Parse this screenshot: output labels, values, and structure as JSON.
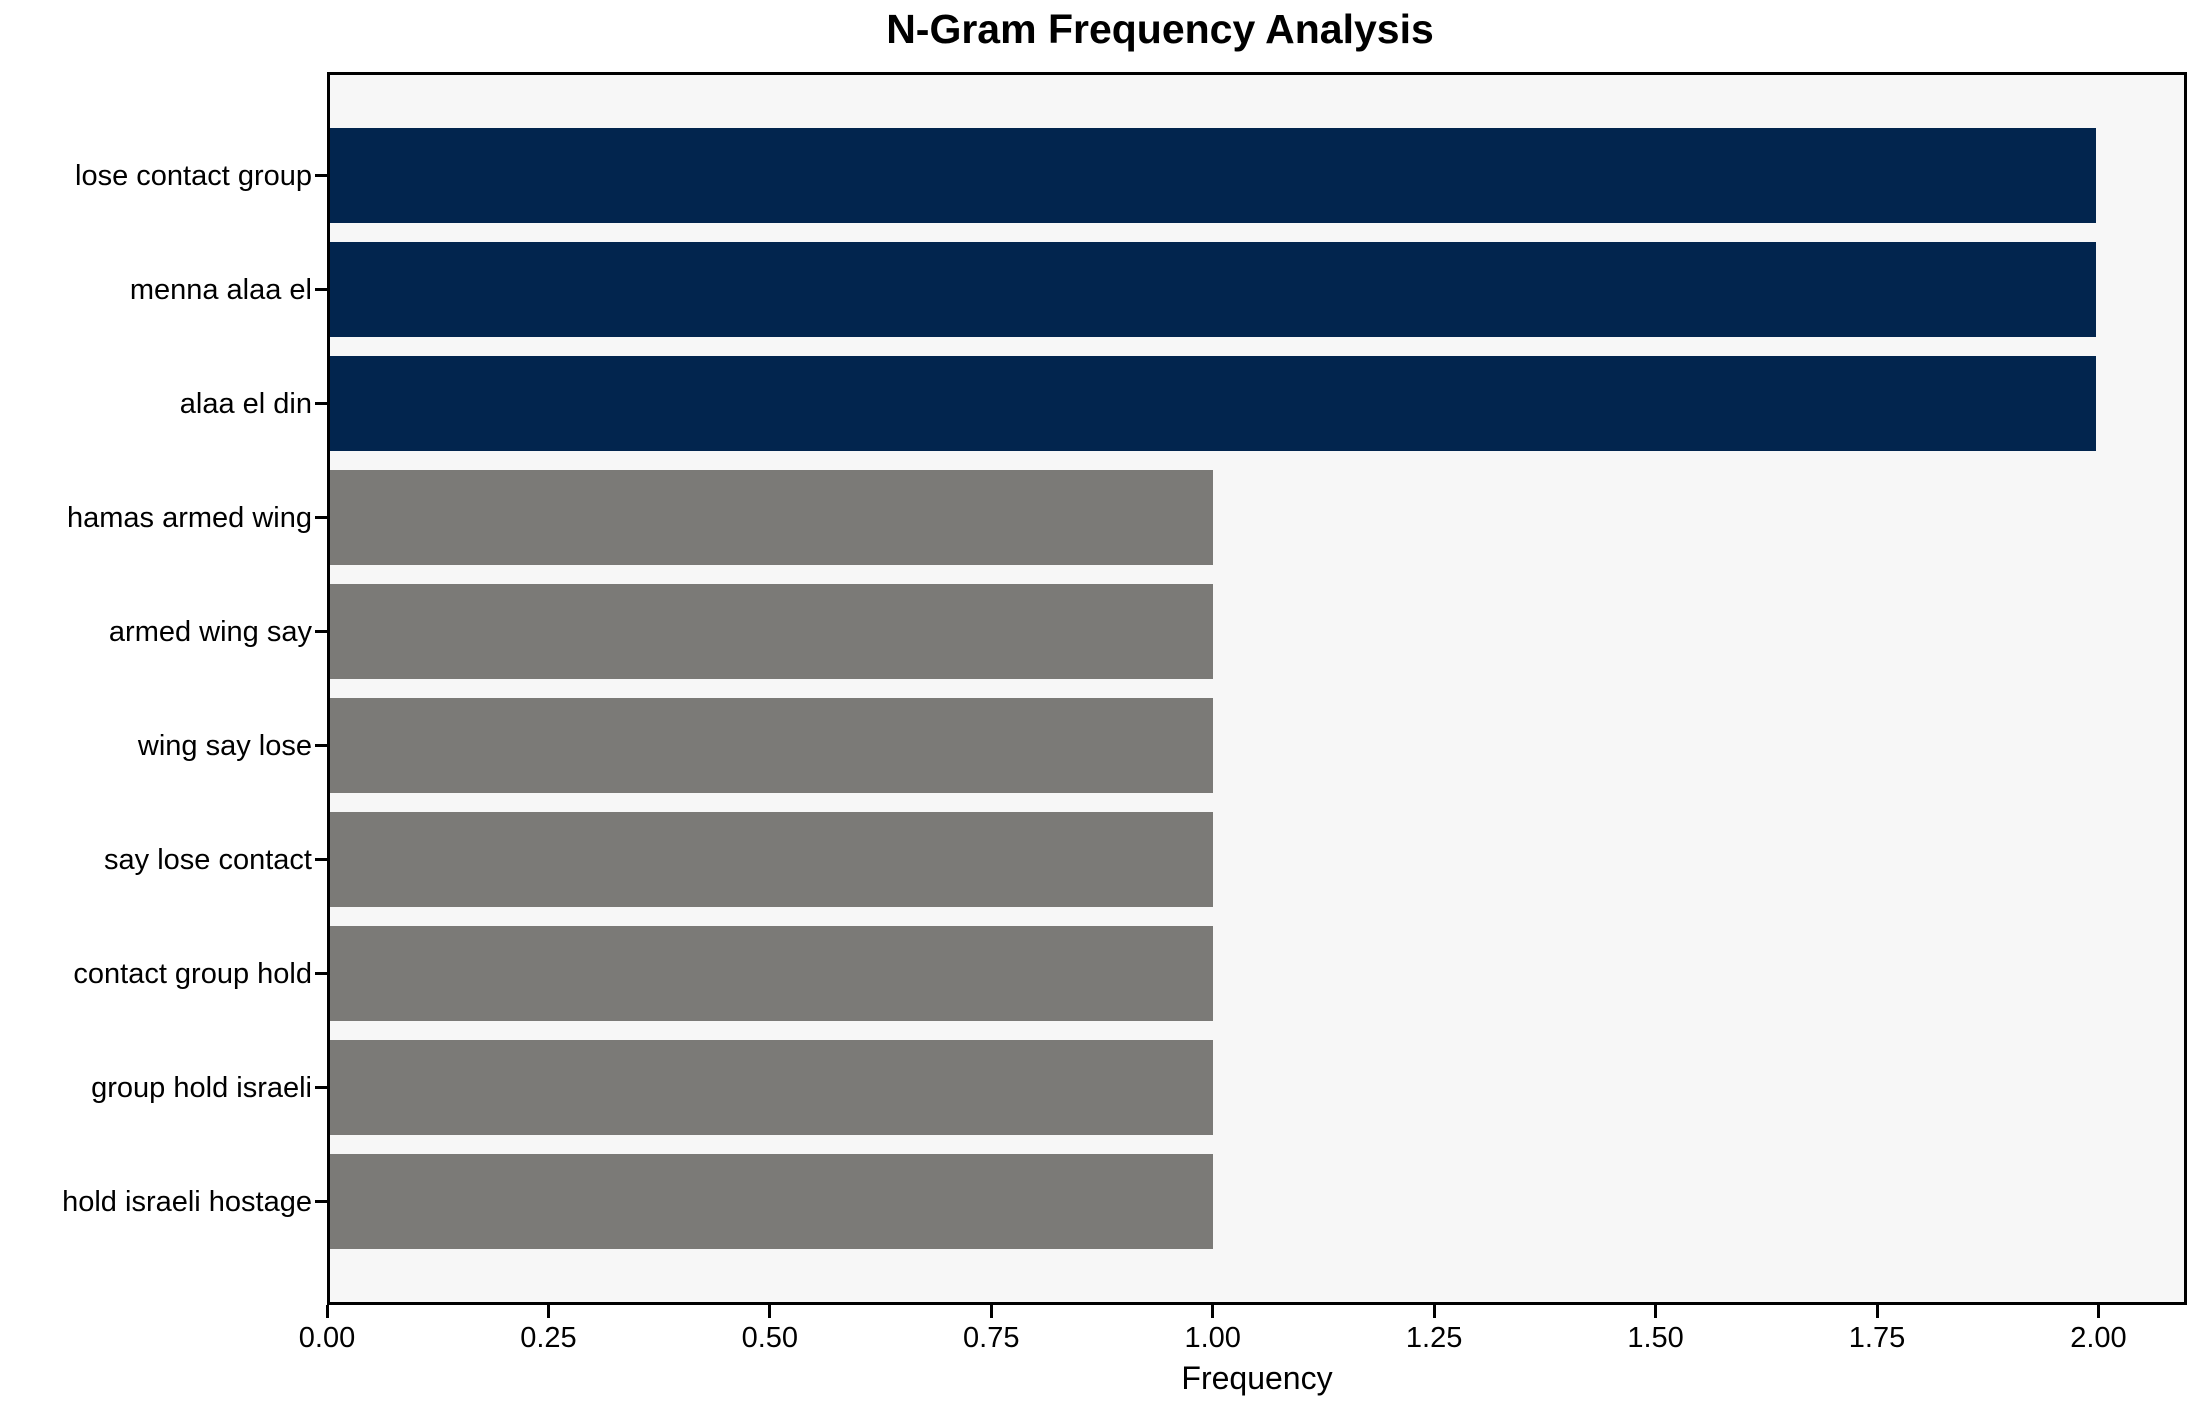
{
  "chart_data": {
    "type": "bar",
    "orientation": "horizontal",
    "title": "N-Gram Frequency Analysis",
    "xlabel": "Frequency",
    "ylabel": "",
    "categories": [
      "lose contact group",
      "menna alaa el",
      "alaa el din",
      "hamas armed wing",
      "armed wing say",
      "wing say lose",
      "say lose contact",
      "contact group hold",
      "group hold israeli",
      "hold israeli hostage"
    ],
    "values": [
      2,
      2,
      2,
      1,
      1,
      1,
      1,
      1,
      1,
      1
    ],
    "xlim": [
      0,
      2.1
    ],
    "xtick_labels": [
      "0.00",
      "0.25",
      "0.50",
      "0.75",
      "1.00",
      "1.25",
      "1.50",
      "1.75",
      "2.00"
    ],
    "xtick_values": [
      0.0,
      0.25,
      0.5,
      0.75,
      1.0,
      1.25,
      1.5,
      1.75,
      2.0
    ],
    "grid": false,
    "legend": null,
    "colors": {
      "highlight_bar": "#02254e",
      "default_bar": "#7b7a77",
      "bar_color_per_value_threshold": 2,
      "plot_background": "#f7f7f7",
      "figure_background": "#ffffff",
      "spine": "#000000",
      "text": "#000000"
    }
  }
}
